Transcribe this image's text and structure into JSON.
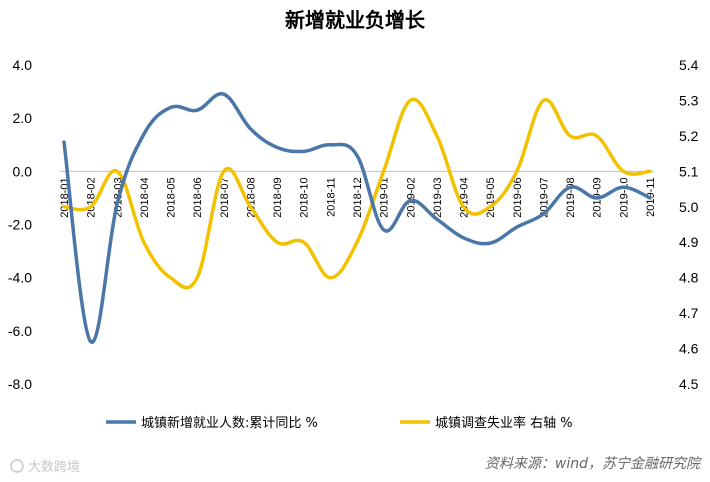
{
  "chart_data": {
    "type": "line",
    "title": "新增就业负增长",
    "categories": [
      "2018-01",
      "2018-02",
      "2018-03",
      "2018-04",
      "2018-05",
      "2018-06",
      "2018-07",
      "2018-08",
      "2018-09",
      "2018-10",
      "2018-11",
      "2018-12",
      "2019-01",
      "2019-02",
      "2019-03",
      "2019-04",
      "2019-05",
      "2019-06",
      "2019-07",
      "2019-08",
      "2019-09",
      "2019-10",
      "2019-11"
    ],
    "left_axis": {
      "ylim": [
        -8.0,
        4.0
      ],
      "ticks": [
        "4.0",
        "2.0",
        "0.0",
        "-2.0",
        "-4.0",
        "-6.0",
        "-8.0"
      ]
    },
    "right_axis": {
      "ylim": [
        4.5,
        5.4
      ],
      "ticks": [
        "5.4",
        "5.3",
        "5.2",
        "5.1",
        "5.0",
        "4.9",
        "4.8",
        "4.7",
        "4.6",
        "4.5"
      ]
    },
    "series": [
      {
        "name": "城镇新增就业人数:累计同比 %",
        "axis": "left",
        "color": "#4a76a8",
        "values": [
          1.1,
          -6.4,
          -1.2,
          1.4,
          2.4,
          2.3,
          2.9,
          1.6,
          0.9,
          0.75,
          1.0,
          0.6,
          -2.2,
          -1.1,
          -1.8,
          -2.5,
          -2.7,
          -2.1,
          -1.6,
          -0.6,
          -1.0,
          -0.6,
          -1.0
        ]
      },
      {
        "name": "城镇调查失业率 右轴 %",
        "axis": "right",
        "color": "#f2c200",
        "values": [
          5.0,
          5.0,
          5.1,
          4.9,
          4.8,
          4.8,
          5.1,
          5.0,
          4.9,
          4.9,
          4.8,
          4.9,
          5.1,
          5.3,
          5.2,
          5.0,
          5.0,
          5.1,
          5.3,
          5.2,
          5.2,
          5.1,
          5.1
        ]
      }
    ],
    "legend_position": "bottom",
    "grid": false
  },
  "footer": {
    "source": "资料来源：wind，苏宁金融研究院",
    "watermark": "大数跨境"
  }
}
